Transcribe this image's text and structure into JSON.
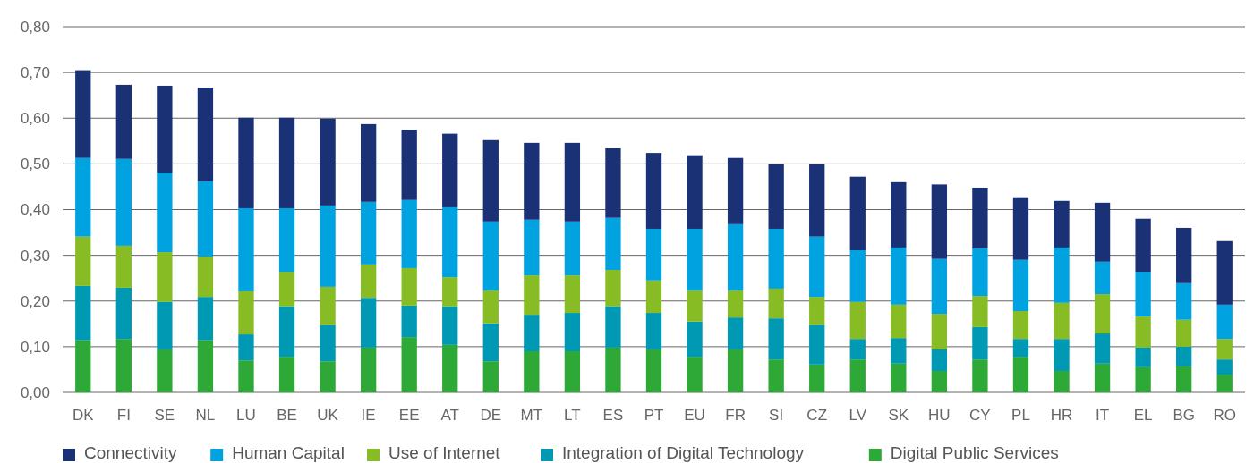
{
  "chart_data": {
    "type": "bar",
    "stacked": true,
    "categories": [
      "DK",
      "FI",
      "SE",
      "NL",
      "LU",
      "BE",
      "UK",
      "IE",
      "EE",
      "AT",
      "DE",
      "MT",
      "LT",
      "ES",
      "PT",
      "EU",
      "FR",
      "SI",
      "CZ",
      "LV",
      "SK",
      "HU",
      "CY",
      "PL",
      "HR",
      "IT",
      "EL",
      "BG",
      "RO"
    ],
    "series": [
      {
        "name": "Digital Public Services",
        "color": "#2ea836",
        "values": [
          0.114,
          0.117,
          0.094,
          0.114,
          0.07,
          0.078,
          0.068,
          0.098,
          0.121,
          0.104,
          0.068,
          0.09,
          0.09,
          0.098,
          0.094,
          0.078,
          0.094,
          0.072,
          0.061,
          0.072,
          0.063,
          0.047,
          0.072,
          0.078,
          0.047,
          0.063,
          0.055,
          0.057,
          0.039
        ]
      },
      {
        "name": "Integration of Digital Technology",
        "color": "#0099b4",
        "values": [
          0.119,
          0.112,
          0.104,
          0.095,
          0.057,
          0.11,
          0.079,
          0.109,
          0.069,
          0.084,
          0.083,
          0.08,
          0.084,
          0.09,
          0.08,
          0.077,
          0.07,
          0.09,
          0.086,
          0.045,
          0.056,
          0.047,
          0.071,
          0.039,
          0.07,
          0.066,
          0.043,
          0.043,
          0.033
        ]
      },
      {
        "name": "Use of Internet",
        "color": "#87bc25",
        "values": [
          0.108,
          0.092,
          0.109,
          0.088,
          0.094,
          0.076,
          0.084,
          0.073,
          0.082,
          0.064,
          0.072,
          0.086,
          0.082,
          0.08,
          0.071,
          0.068,
          0.059,
          0.065,
          0.062,
          0.081,
          0.073,
          0.078,
          0.068,
          0.061,
          0.079,
          0.086,
          0.068,
          0.059,
          0.045
        ]
      },
      {
        "name": "Human Capital",
        "color": "#00a3e0",
        "values": [
          0.172,
          0.19,
          0.174,
          0.165,
          0.182,
          0.139,
          0.178,
          0.137,
          0.149,
          0.153,
          0.151,
          0.122,
          0.118,
          0.114,
          0.113,
          0.135,
          0.145,
          0.131,
          0.132,
          0.113,
          0.125,
          0.12,
          0.104,
          0.112,
          0.121,
          0.071,
          0.098,
          0.08,
          0.075
        ]
      },
      {
        "name": "Connectivity",
        "color": "#1b3176",
        "values": [
          0.192,
          0.162,
          0.19,
          0.205,
          0.198,
          0.198,
          0.19,
          0.17,
          0.154,
          0.161,
          0.178,
          0.168,
          0.172,
          0.152,
          0.166,
          0.161,
          0.145,
          0.141,
          0.158,
          0.161,
          0.143,
          0.163,
          0.133,
          0.137,
          0.102,
          0.129,
          0.116,
          0.121,
          0.139
        ]
      }
    ],
    "ylim": [
      0,
      0.8
    ],
    "yticks": [
      {
        "value": 0,
        "label": "0,00"
      },
      {
        "value": 0.1,
        "label": "0,10"
      },
      {
        "value": 0.2,
        "label": "0,20"
      },
      {
        "value": 0.3,
        "label": "0,30"
      },
      {
        "value": 0.4,
        "label": "0,40"
      },
      {
        "value": 0.5,
        "label": "0,50"
      },
      {
        "value": 0.6,
        "label": "0,60"
      },
      {
        "value": 0.7,
        "label": "0,70"
      },
      {
        "value": 0.8,
        "label": "0,80"
      }
    ],
    "grid": "y",
    "legend": "bottom"
  }
}
